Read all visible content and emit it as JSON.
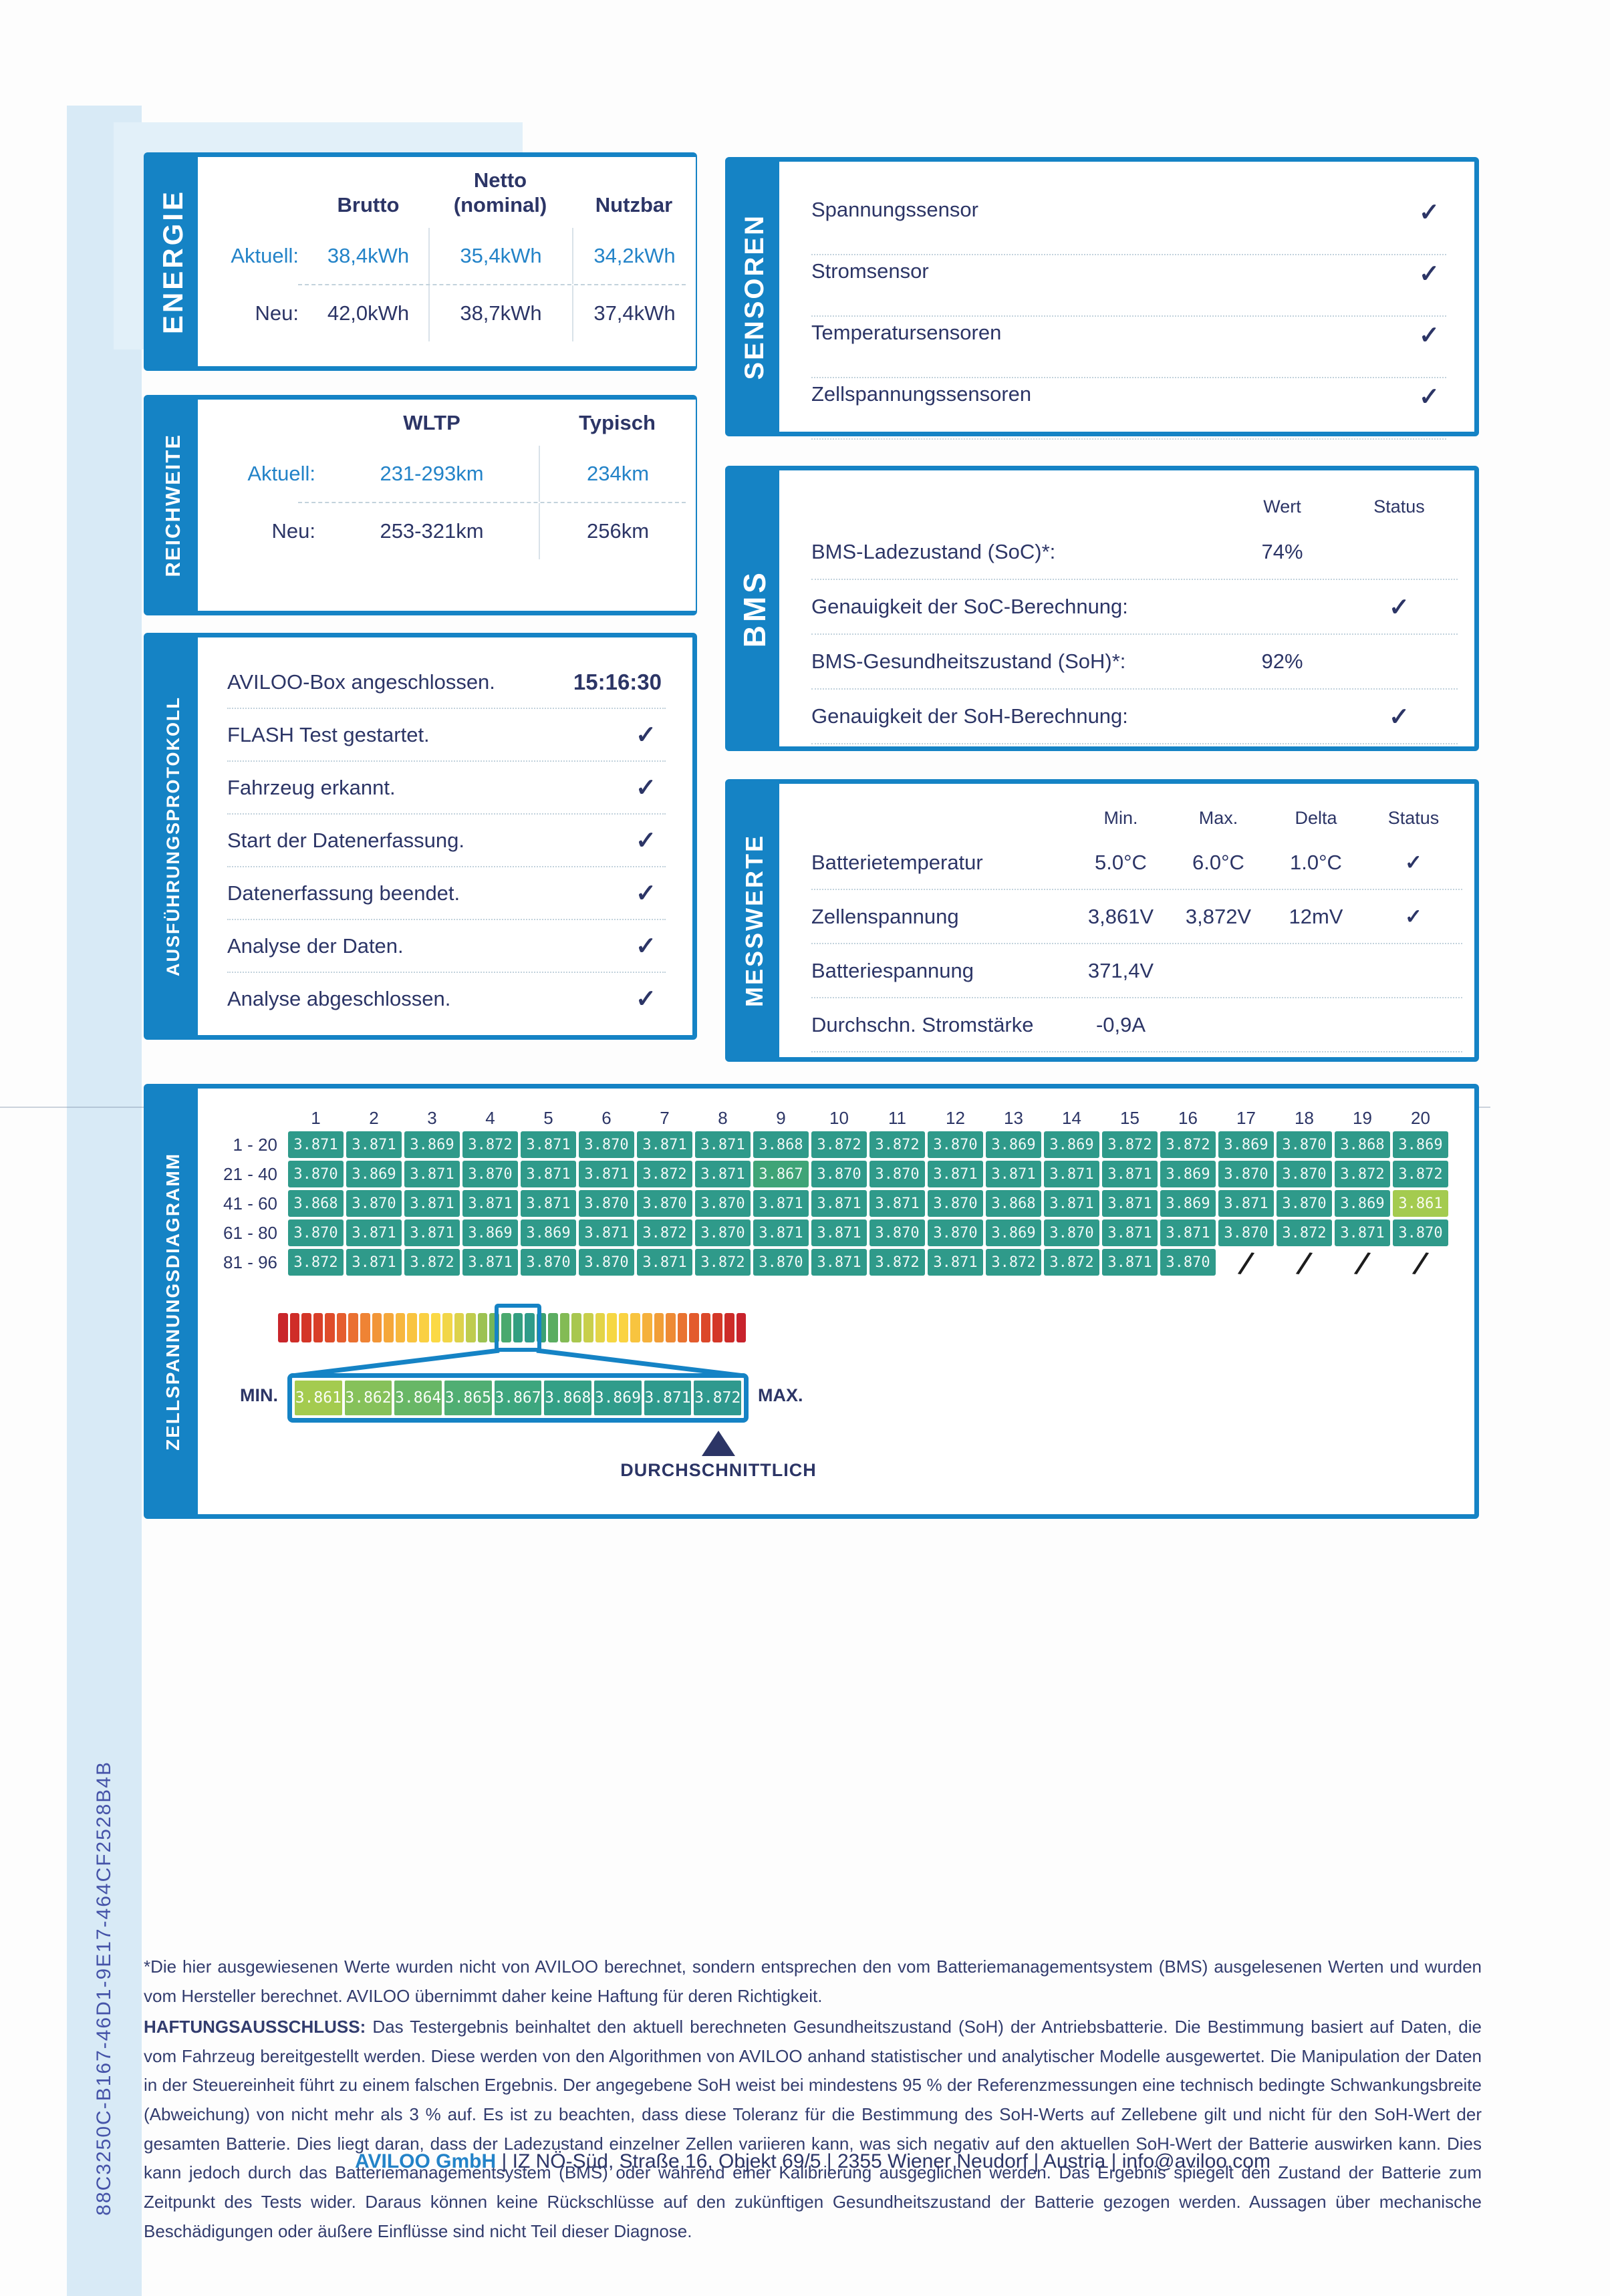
{
  "icons": {
    "check": "✓"
  },
  "colors": {
    "accent_blue": "#1583c5",
    "navy_text": "#2c3566",
    "value_blue": "#2383c8",
    "cell_teal_default": "#2f9a8a",
    "value_colors": {
      "3.861": "#a4cb4f",
      "3.867": "#3fa477",
      "default": "#2f9a8a"
    }
  },
  "sections": {
    "energie": {
      "label": "ENERGIE",
      "col_headers": [
        "Brutto",
        "Netto (nominal)",
        "Nutzbar"
      ],
      "rows": [
        {
          "label": "Aktuell:",
          "values": [
            "38,4kWh",
            "35,4kWh",
            "34,2kWh"
          ]
        },
        {
          "label": "Neu:",
          "values": [
            "42,0kWh",
            "38,7kWh",
            "37,4kWh"
          ]
        }
      ]
    },
    "reichweite": {
      "label": "REICHWEITE",
      "col_headers": [
        "WLTP",
        "Typisch"
      ],
      "rows": [
        {
          "label": "Aktuell:",
          "values": [
            "231-293km",
            "234km"
          ]
        },
        {
          "label": "Neu:",
          "values": [
            "253-321km",
            "256km"
          ]
        }
      ]
    },
    "protokoll": {
      "label": "AUSFÜHRUNGSPROTOKOLL",
      "rows": [
        {
          "text": "AVILOO-Box angeschlossen.",
          "time": "15:16:30"
        },
        {
          "text": "FLASH Test gestartet.",
          "check": true
        },
        {
          "text": "Fahrzeug erkannt.",
          "check": true
        },
        {
          "text": "Start der Datenerfassung.",
          "check": true
        },
        {
          "text": "Datenerfassung beendet.",
          "check": true
        },
        {
          "text": "Analyse der Daten.",
          "check": true
        },
        {
          "text": "Analyse abgeschlossen.",
          "check": true
        }
      ]
    },
    "sensoren": {
      "label": "SENSOREN",
      "rows": [
        "Spannungssensor",
        "Stromsensor",
        "Temperatursensoren",
        "Zellspannungssensoren"
      ]
    },
    "bms": {
      "label": "BMS",
      "col_headers": [
        "Wert",
        "Status"
      ],
      "rows": [
        {
          "text": "BMS-Ladezustand (SoC)*:",
          "wert": "74%"
        },
        {
          "text": "Genauigkeit der SoC-Berechnung:",
          "check": true
        },
        {
          "text": "BMS-Gesundheitszustand (SoH)*:",
          "wert": "92%"
        },
        {
          "text": "Genauigkeit der SoH-Berechnung:",
          "check": true
        }
      ]
    },
    "messwerte": {
      "label": "MESSWERTE",
      "col_headers": [
        "Min.",
        "Max.",
        "Delta",
        "Status"
      ],
      "rows": [
        {
          "text": "Batterietemperatur",
          "min": "5.0°C",
          "max": "6.0°C",
          "delta": "1.0°C",
          "check": true
        },
        {
          "text": "Zellenspannung",
          "min": "3,861V",
          "max": "3,872V",
          "delta": "12mV",
          "check": true
        },
        {
          "text": "Batteriespannung",
          "min": "371,4V"
        },
        {
          "text": "Durchschn. Stromstärke",
          "min": "-0,9A"
        }
      ]
    },
    "zellspannung": {
      "label": "ZELLSPANNUNGSDIAGRAMM",
      "col_headers": [
        "1",
        "2",
        "3",
        "4",
        "5",
        "6",
        "7",
        "8",
        "9",
        "10",
        "11",
        "12",
        "13",
        "14",
        "15",
        "16",
        "17",
        "18",
        "19",
        "20"
      ],
      "row_labels": [
        "1 - 20",
        "21 - 40",
        "41 - 60",
        "61 - 80",
        "81 - 96"
      ],
      "grid": [
        [
          "3.871",
          "3.871",
          "3.869",
          "3.872",
          "3.871",
          "3.870",
          "3.871",
          "3.871",
          "3.868",
          "3.872",
          "3.872",
          "3.870",
          "3.869",
          "3.869",
          "3.872",
          "3.872",
          "3.869",
          "3.870",
          "3.868",
          "3.869"
        ],
        [
          "3.870",
          "3.869",
          "3.871",
          "3.870",
          "3.871",
          "3.871",
          "3.872",
          "3.871",
          "3.867",
          "3.870",
          "3.870",
          "3.871",
          "3.871",
          "3.871",
          "3.871",
          "3.869",
          "3.870",
          "3.870",
          "3.872",
          "3.872"
        ],
        [
          "3.868",
          "3.870",
          "3.871",
          "3.871",
          "3.871",
          "3.870",
          "3.870",
          "3.870",
          "3.871",
          "3.871",
          "3.871",
          "3.870",
          "3.868",
          "3.871",
          "3.871",
          "3.869",
          "3.871",
          "3.870",
          "3.869",
          "3.861"
        ],
        [
          "3.870",
          "3.871",
          "3.871",
          "3.869",
          "3.869",
          "3.871",
          "3.872",
          "3.870",
          "3.871",
          "3.871",
          "3.870",
          "3.870",
          "3.869",
          "3.870",
          "3.871",
          "3.871",
          "3.870",
          "3.872",
          "3.871",
          "3.870"
        ],
        [
          "3.872",
          "3.871",
          "3.872",
          "3.871",
          "3.870",
          "3.870",
          "3.871",
          "3.872",
          "3.870",
          "3.871",
          "3.872",
          "3.871",
          "3.872",
          "3.872",
          "3.871",
          "3.870",
          "/",
          "/",
          "/",
          "/"
        ]
      ],
      "scale": {
        "min_label": "MIN.",
        "max_label": "MAX.",
        "values": [
          "3.861",
          "3.862",
          "3.864",
          "3.865",
          "3.867",
          "3.868",
          "3.869",
          "3.871",
          "3.872"
        ],
        "colors": [
          "#a4cb4f",
          "#86c15a",
          "#68b766",
          "#50ae73",
          "#3da67e",
          "#34a086",
          "#309c8b",
          "#2f9a8d",
          "#2f998e"
        ],
        "avg_label": "DURCHSCHNITTLICH"
      }
    }
  },
  "gradient_bar": [
    "#c9262b",
    "#cf2d28",
    "#d43527",
    "#d93e28",
    "#df4c2a",
    "#e55e2e",
    "#ea7031",
    "#ef8334",
    "#f29537",
    "#f5a73a",
    "#f7b73d",
    "#f9c440",
    "#fad043",
    "#fbd945",
    "#f2d648",
    "#ddd24b",
    "#bfcc4e",
    "#9cc252",
    "#74b65a",
    "#4aa96e",
    "#339f80",
    "#2f9c89",
    "#3ba173",
    "#5bad61",
    "#83bb55",
    "#a8c74f",
    "#c8cf4b",
    "#e3d447",
    "#f6d744",
    "#fad342",
    "#f8c43f",
    "#f5b13c",
    "#f19e38",
    "#ee8a35",
    "#e97331",
    "#e35b2d",
    "#dc482a",
    "#d43727",
    "#cd2b28",
    "#c8232c"
  ],
  "footnote": "*Die hier ausgewiesenen Werte wurden nicht von AVILOO berechnet, sondern entsprechen den vom Batteriemanagementsystem (BMS) ausgelesenen Werten und wurden vom Hersteller berechnet. AVILOO übernimmt daher keine Haftung für deren Richtigkeit.",
  "disclaimer_label": "HAFTUNGSAUSSCHLUSS:",
  "disclaimer": "Das Testergebnis beinhaltet den aktuell berechneten Gesundheitszustand (SoH) der Antriebsbatterie. Die Bestimmung basiert auf Daten, die vom Fahrzeug bereitgestellt werden. Diese werden von den Algorithmen von AVILOO anhand statistischer und analytischer Modelle ausgewertet. Die Manipulation der Daten in der Steuereinheit führt zu einem falschen Ergebnis. Der angegebene SoH weist bei mindestens 95 % der Referenzmessungen eine technisch bedingte Schwankungsbreite (Abweichung) von nicht mehr als 3 % auf. Es ist zu beachten, dass diese Toleranz für die Bestimmung des SoH-Werts auf Zellebene gilt und nicht für den SoH-Wert der gesamten Batterie. Dies liegt daran, dass der Ladezustand einzelner Zellen variieren kann, was sich negativ auf den aktuellen SoH-Wert der Batterie auswirken kann. Dies kann jedoch durch das Batteriemanagementsystem (BMS) oder während einer Kalibrierung ausgeglichen werden. Das Ergebnis spiegelt den Zustand der Batterie zum Zeitpunkt des Tests wider. Daraus können keine Rückschlüsse auf den zukünftigen Gesundheitszustand der Batterie gezogen werden. Aussagen über mechanische Beschädigungen oder äußere Einflüsse sind nicht Teil dieser Diagnose.",
  "footer": {
    "company": "AVILOO GmbH",
    "rest": " | IZ NÖ-Süd, Straße 16, Objekt 69/5 | 2355 Wiener Neudorf | Austria | info@aviloo.com"
  },
  "sidebar_id": "88C3250C-B167-46D1-9E17-464CF2528B4B"
}
